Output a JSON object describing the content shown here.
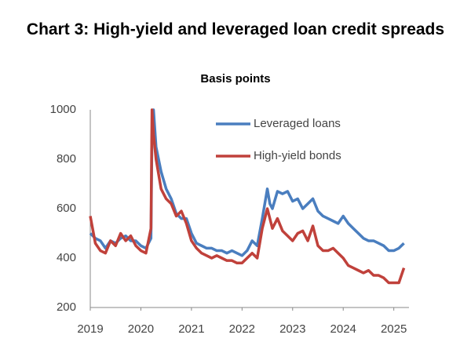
{
  "chart_data": {
    "type": "line",
    "title": "Chart 3: High-yield and leveraged loan credit spreads",
    "subtitle": "Basis points",
    "x": [
      2019.0,
      2019.1,
      2019.2,
      2019.3,
      2019.4,
      2019.5,
      2019.6,
      2019.7,
      2019.8,
      2019.9,
      2020.0,
      2020.1,
      2020.2,
      2020.22,
      2020.25,
      2020.3,
      2020.4,
      2020.5,
      2020.6,
      2020.7,
      2020.8,
      2020.9,
      2021.0,
      2021.1,
      2021.2,
      2021.3,
      2021.4,
      2021.5,
      2021.6,
      2021.7,
      2021.8,
      2021.9,
      2022.0,
      2022.1,
      2022.2,
      2022.3,
      2022.4,
      2022.5,
      2022.55,
      2022.6,
      2022.7,
      2022.8,
      2022.9,
      2023.0,
      2023.1,
      2023.2,
      2023.3,
      2023.4,
      2023.5,
      2023.6,
      2023.7,
      2023.8,
      2023.9,
      2024.0,
      2024.1,
      2024.2,
      2024.3,
      2024.4,
      2024.5,
      2024.6,
      2024.7,
      2024.8,
      2024.9,
      2025.0,
      2025.1,
      2025.2
    ],
    "series": [
      {
        "name": "Leveraged loans",
        "color": "#4a7ebf",
        "values": [
          500,
          480,
          470,
          440,
          470,
          460,
          480,
          490,
          470,
          470,
          450,
          440,
          480,
          900,
          1000,
          850,
          750,
          680,
          640,
          580,
          560,
          560,
          500,
          460,
          450,
          440,
          440,
          430,
          430,
          420,
          430,
          420,
          410,
          430,
          470,
          450,
          560,
          680,
          620,
          600,
          670,
          660,
          670,
          630,
          640,
          600,
          620,
          640,
          590,
          570,
          560,
          550,
          540,
          570,
          540,
          520,
          500,
          480,
          470,
          470,
          460,
          450,
          430,
          430,
          440,
          460
        ]
      },
      {
        "name": "High-yield bonds",
        "color": "#c0413b",
        "values": [
          570,
          460,
          430,
          420,
          470,
          450,
          500,
          470,
          490,
          450,
          430,
          420,
          520,
          1000,
          900,
          800,
          680,
          640,
          620,
          570,
          590,
          540,
          470,
          440,
          420,
          410,
          400,
          410,
          400,
          390,
          390,
          380,
          380,
          400,
          420,
          400,
          520,
          600,
          560,
          520,
          560,
          510,
          490,
          470,
          500,
          510,
          470,
          530,
          450,
          430,
          430,
          440,
          420,
          400,
          370,
          360,
          350,
          340,
          350,
          330,
          330,
          320,
          300,
          300,
          300,
          360
        ]
      }
    ],
    "xlim": [
      2019,
      2025.3
    ],
    "xticks": [
      2019,
      2020,
      2021,
      2022,
      2023,
      2024,
      2025
    ],
    "ylim": [
      200,
      1000
    ],
    "yticks": [
      200,
      400,
      600,
      800,
      1000
    ],
    "grid": false,
    "legend": "upper right"
  }
}
